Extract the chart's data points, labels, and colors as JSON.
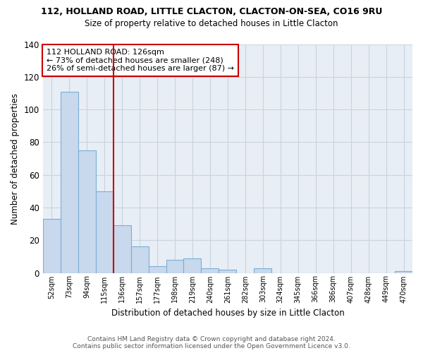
{
  "title1": "112, HOLLAND ROAD, LITTLE CLACTON, CLACTON-ON-SEA, CO16 9RU",
  "title2": "Size of property relative to detached houses in Little Clacton",
  "xlabel": "Distribution of detached houses by size in Little Clacton",
  "ylabel": "Number of detached properties",
  "bar_labels": [
    "52sqm",
    "73sqm",
    "94sqm",
    "115sqm",
    "136sqm",
    "157sqm",
    "177sqm",
    "198sqm",
    "219sqm",
    "240sqm",
    "261sqm",
    "282sqm",
    "303sqm",
    "324sqm",
    "345sqm",
    "366sqm",
    "386sqm",
    "407sqm",
    "428sqm",
    "449sqm",
    "470sqm"
  ],
  "bar_values": [
    33,
    111,
    75,
    50,
    29,
    16,
    4,
    8,
    9,
    3,
    2,
    0,
    3,
    0,
    0,
    0,
    0,
    0,
    0,
    0,
    1
  ],
  "bar_color": "#c8d8ed",
  "bar_edge_color": "#7bafd4",
  "vline_color": "#cc0000",
  "vline_pos": 3.5,
  "annotation_title": "112 HOLLAND ROAD: 126sqm",
  "annotation_line1": "← 73% of detached houses are smaller (248)",
  "annotation_line2": "26% of semi-detached houses are larger (87) →",
  "annotation_box_color": "#ffffff",
  "annotation_box_edge": "#cc0000",
  "ylim": [
    0,
    140
  ],
  "yticks": [
    0,
    20,
    40,
    60,
    80,
    100,
    120,
    140
  ],
  "footer1": "Contains HM Land Registry data © Crown copyright and database right 2024.",
  "footer2": "Contains public sector information licensed under the Open Government Licence v3.0.",
  "bg_color": "#ffffff",
  "plot_bg_color": "#e8eef5",
  "grid_color": "#c8d4e0"
}
